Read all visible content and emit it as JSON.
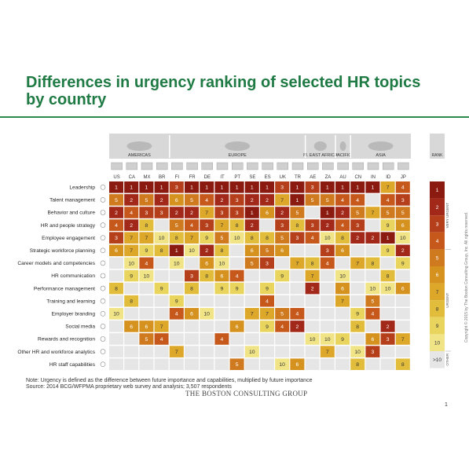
{
  "title": "Differences in urgency ranking of selected HR topics by country",
  "note": "Note: Urgency is defined as the difference between future importance and capabilities, multiplied by future importance",
  "source": "Source: 2014 BCG/WFPMA proprietary web survey and analysis; 3,507 respondents",
  "brand": "THE BOSTON CONSULTING GROUP",
  "page_number": "1",
  "copyright": "Copyright © 2015 by The Boston Consulting Group, Inc. All rights reserved.",
  "colors": {
    "title": "#1f7a44",
    "rank_1": "#8b1a10",
    "rank_2": "#a2281a",
    "rank_3": "#b53f1a",
    "rank_4": "#c6581c",
    "rank_5": "#cf7a1e",
    "rank_6": "#d5921f",
    "rank_7": "#dda72a",
    "rank_8": "#e2bd3c",
    "rank_9": "#e9d55e",
    "rank_10": "#f0e487",
    "other": "#e6e6e6",
    "region_band": "#d8d8d8"
  },
  "chart_data": {
    "type": "heatmap",
    "regions": [
      {
        "name": "AMERICAS",
        "countries": [
          "US",
          "CA",
          "MX",
          "BR"
        ]
      },
      {
        "name": "EUROPE",
        "countries": [
          "FI",
          "FR",
          "DE",
          "IT",
          "PT",
          "SE",
          "ES",
          "UK",
          "TR"
        ]
      },
      {
        "name": "M. EAST AFRICA",
        "countries": [
          "AE",
          "ZA"
        ]
      },
      {
        "name": "PACIFIC",
        "countries": [
          "AU"
        ]
      },
      {
        "name": "ASIA",
        "countries": [
          "CN",
          "IN",
          "ID",
          "JP"
        ]
      }
    ],
    "countries": [
      "US",
      "CA",
      "MX",
      "BR",
      "FI",
      "FR",
      "DE",
      "IT",
      "PT",
      "SE",
      "ES",
      "UK",
      "TR",
      "AE",
      "ZA",
      "AU",
      "CN",
      "IN",
      "ID",
      "JP"
    ],
    "topics": [
      "Leadership",
      "Talent management",
      "Behavior and culture",
      "HR and people strategy",
      "Employee engagement",
      "Strategic workforce planning",
      "Career models and competencies",
      "HR communication",
      "Performance management",
      "Training and learning",
      "Employer branding",
      "Social media",
      "Rewards and recognition",
      "Other HR and workforce analytics",
      "HR staff capabilities"
    ],
    "ranks": [
      [
        1,
        1,
        1,
        1,
        3,
        1,
        1,
        1,
        1,
        1,
        1,
        3,
        1,
        3,
        1,
        1,
        1,
        1,
        7,
        4
      ],
      [
        5,
        2,
        5,
        2,
        6,
        5,
        4,
        2,
        3,
        2,
        2,
        7,
        1,
        5,
        5,
        4,
        4,
        null,
        4,
        3
      ],
      [
        2,
        4,
        3,
        3,
        2,
        2,
        7,
        3,
        3,
        1,
        6,
        2,
        5,
        null,
        1,
        2,
        5,
        7,
        5,
        5
      ],
      [
        4,
        2,
        8,
        null,
        5,
        4,
        3,
        7,
        8,
        2,
        null,
        3,
        8,
        3,
        2,
        4,
        3,
        null,
        9,
        6
      ],
      [
        3,
        7,
        7,
        10,
        8,
        7,
        9,
        5,
        10,
        8,
        8,
        5,
        3,
        4,
        10,
        8,
        2,
        2,
        1,
        10
      ],
      [
        6,
        7,
        9,
        8,
        1,
        10,
        2,
        8,
        null,
        6,
        5,
        6,
        null,
        null,
        3,
        6,
        null,
        null,
        9,
        2
      ],
      [
        null,
        10,
        4,
        null,
        10,
        null,
        6,
        10,
        null,
        5,
        3,
        null,
        7,
        8,
        4,
        null,
        7,
        8,
        null,
        9
      ],
      [
        null,
        9,
        10,
        null,
        null,
        3,
        8,
        6,
        4,
        null,
        null,
        9,
        null,
        7,
        null,
        10,
        null,
        null,
        8,
        null
      ],
      [
        8,
        null,
        null,
        9,
        null,
        8,
        null,
        9,
        9,
        null,
        9,
        null,
        null,
        2,
        null,
        6,
        null,
        10,
        10,
        6
      ],
      [
        null,
        8,
        null,
        null,
        9,
        null,
        null,
        null,
        null,
        null,
        4,
        null,
        null,
        null,
        null,
        7,
        null,
        5,
        null,
        null
      ],
      [
        10,
        null,
        null,
        null,
        4,
        6,
        10,
        null,
        null,
        7,
        7,
        5,
        4,
        null,
        null,
        null,
        9,
        4,
        null,
        null
      ],
      [
        null,
        6,
        6,
        7,
        null,
        null,
        null,
        null,
        6,
        null,
        9,
        4,
        2,
        null,
        null,
        null,
        8,
        null,
        2,
        null
      ],
      [
        null,
        null,
        5,
        4,
        null,
        null,
        null,
        4,
        null,
        null,
        null,
        null,
        null,
        10,
        10,
        9,
        null,
        6,
        3,
        7
      ],
      [
        null,
        null,
        null,
        null,
        7,
        null,
        null,
        null,
        null,
        10,
        null,
        null,
        null,
        null,
        7,
        null,
        10,
        3,
        null,
        null
      ],
      [
        null,
        null,
        null,
        null,
        null,
        null,
        null,
        null,
        5,
        null,
        null,
        10,
        6,
        null,
        null,
        null,
        8,
        null,
        null,
        8
      ]
    ],
    "legend": {
      "title": "RANK",
      "ranks": [
        "1",
        "2",
        "3",
        "4",
        "5",
        "6",
        "7",
        "8",
        "9",
        "10",
        ">10"
      ],
      "groups": [
        "VERY URGENT",
        "URGENT",
        "OTHER"
      ]
    }
  }
}
